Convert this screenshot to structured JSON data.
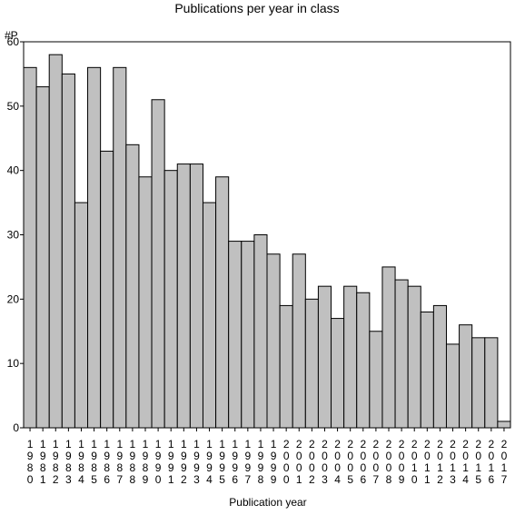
{
  "chart_data": {
    "type": "bar",
    "title": "Publications per year in class",
    "xlabel": "Publication year",
    "ylabel": "#P",
    "ylim": [
      0,
      60
    ],
    "yticks": [
      0,
      10,
      20,
      30,
      40,
      50,
      60
    ],
    "grid": false,
    "categories": [
      "1980",
      "1981",
      "1982",
      "1983",
      "1984",
      "1985",
      "1986",
      "1987",
      "1988",
      "1989",
      "1990",
      "1991",
      "1992",
      "1993",
      "1994",
      "1995",
      "1996",
      "1997",
      "1998",
      "1999",
      "2000",
      "2001",
      "2002",
      "2003",
      "2004",
      "2005",
      "2006",
      "2007",
      "2008",
      "2009",
      "2010",
      "2011",
      "2012",
      "2013",
      "2014",
      "2015",
      "2016",
      "2017"
    ],
    "values": [
      56,
      53,
      58,
      55,
      35,
      56,
      43,
      56,
      44,
      39,
      51,
      40,
      41,
      41,
      35,
      39,
      29,
      29,
      30,
      27,
      19,
      27,
      20,
      22,
      17,
      22,
      21,
      15,
      25,
      23,
      22,
      18,
      19,
      13,
      16,
      14,
      14,
      1
    ],
    "colors": {
      "bar_fill": "#c0c0c0",
      "bar_stroke": "#000000"
    }
  }
}
